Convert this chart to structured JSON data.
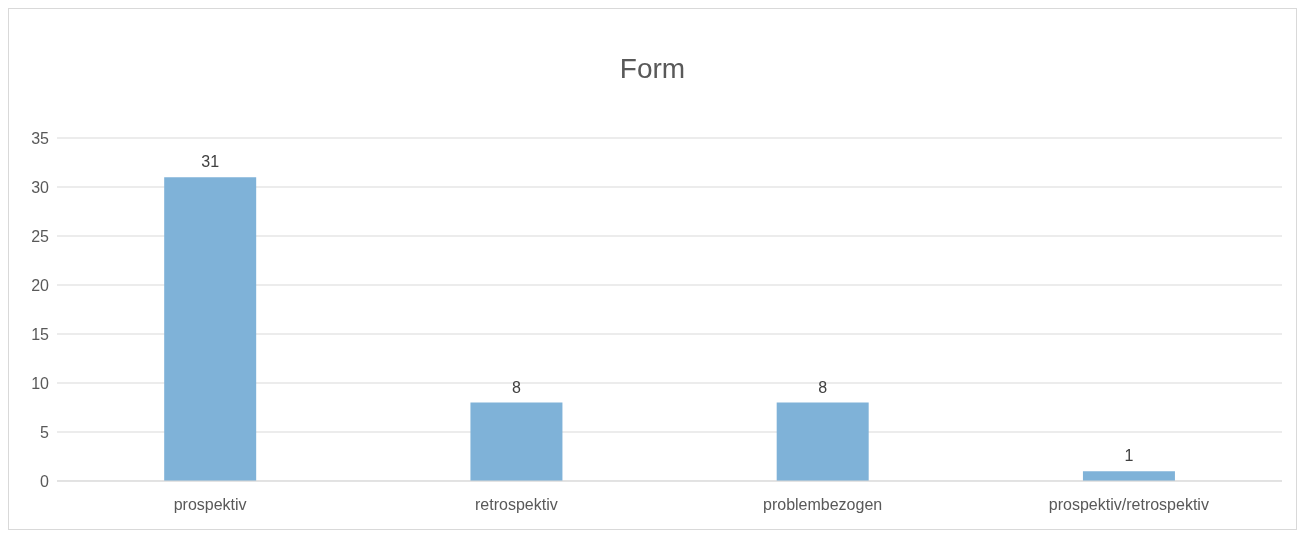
{
  "chart_data": {
    "type": "bar",
    "title": "Form",
    "categories": [
      "prospektiv",
      "retrospektiv",
      "problembezogen",
      "prospektiv/retrospektiv"
    ],
    "values": [
      31,
      8,
      8,
      1
    ],
    "color": "#7fb2d8",
    "ylim": [
      0,
      35
    ],
    "yticks": [
      0,
      5,
      10,
      15,
      20,
      25,
      30,
      35
    ],
    "grid": "y",
    "data_labels": true
  }
}
